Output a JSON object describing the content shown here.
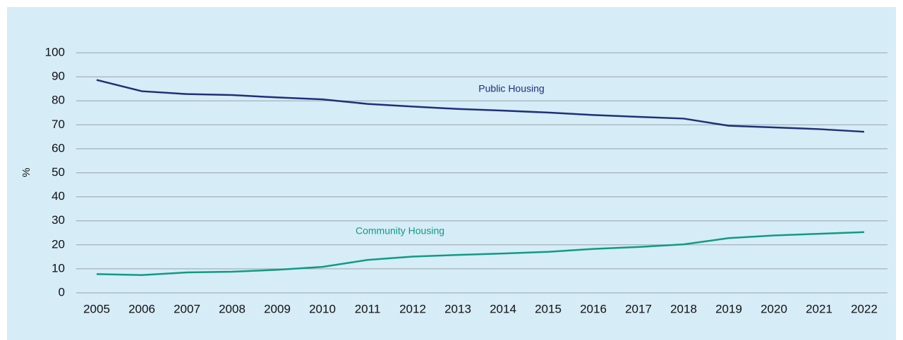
{
  "chart_data": {
    "type": "line",
    "ylabel": "%",
    "categories": [
      "2005",
      "2006",
      "2007",
      "2008",
      "2009",
      "2010",
      "2011",
      "2012",
      "2013",
      "2014",
      "2015",
      "2016",
      "2017",
      "2018",
      "2019",
      "2020",
      "2021",
      "2022"
    ],
    "series": [
      {
        "name": "Public Housing",
        "color": "#1f2f7a",
        "values": [
          88.7,
          84.0,
          82.8,
          82.4,
          81.4,
          80.6,
          78.7,
          77.6,
          76.6,
          75.9,
          75.1,
          74.1,
          73.3,
          72.6,
          69.6,
          68.9,
          68.2,
          67.1
        ]
      },
      {
        "name": "Community Housing",
        "color": "#0f9b84",
        "values": [
          7.8,
          7.4,
          8.5,
          8.8,
          9.6,
          10.8,
          13.7,
          15.1,
          15.8,
          16.4,
          17.1,
          18.3,
          19.1,
          20.2,
          22.8,
          23.9,
          24.6,
          25.3
        ]
      }
    ],
    "ylim": [
      0,
      100
    ],
    "yticks": [
      0,
      10,
      20,
      30,
      40,
      50,
      60,
      70,
      80,
      90,
      100
    ],
    "grid": true
  }
}
